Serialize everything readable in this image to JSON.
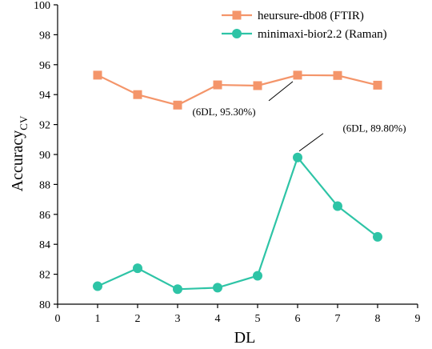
{
  "chart_data": {
    "type": "line",
    "xlabel": "DL",
    "ylabel": "Accuracy",
    "ylabel_sub": "CV",
    "xlim": [
      0,
      9
    ],
    "ylim": [
      80,
      100
    ],
    "xticks": [
      0,
      1,
      2,
      3,
      4,
      5,
      6,
      7,
      8,
      9
    ],
    "yticks": [
      80,
      82,
      84,
      86,
      88,
      90,
      92,
      94,
      96,
      98,
      100
    ],
    "grid": false,
    "legend_position": "top-right",
    "series": [
      {
        "name": "heursure-db08 (FTIR)",
        "color": "#f4956a",
        "marker": "square",
        "x": [
          1,
          2,
          3,
          4,
          5,
          6,
          7,
          8
        ],
        "y": [
          95.3,
          94.0,
          93.3,
          94.65,
          94.6,
          95.3,
          95.28,
          94.63
        ]
      },
      {
        "name": "minimaxi-bior2.2 (Raman)",
        "color": "#2ec4a6",
        "marker": "circle",
        "x": [
          1,
          2,
          3,
          4,
          5,
          6,
          7,
          8
        ],
        "y": [
          81.2,
          82.4,
          81.0,
          81.1,
          81.9,
          89.8,
          86.55,
          84.5
        ]
      }
    ],
    "annotations": [
      {
        "text": "(6DL, 95.30%)",
        "x": 6,
        "y": 95.3
      },
      {
        "text": "(6DL, 89.80%)",
        "x": 6,
        "y": 89.8
      }
    ]
  }
}
